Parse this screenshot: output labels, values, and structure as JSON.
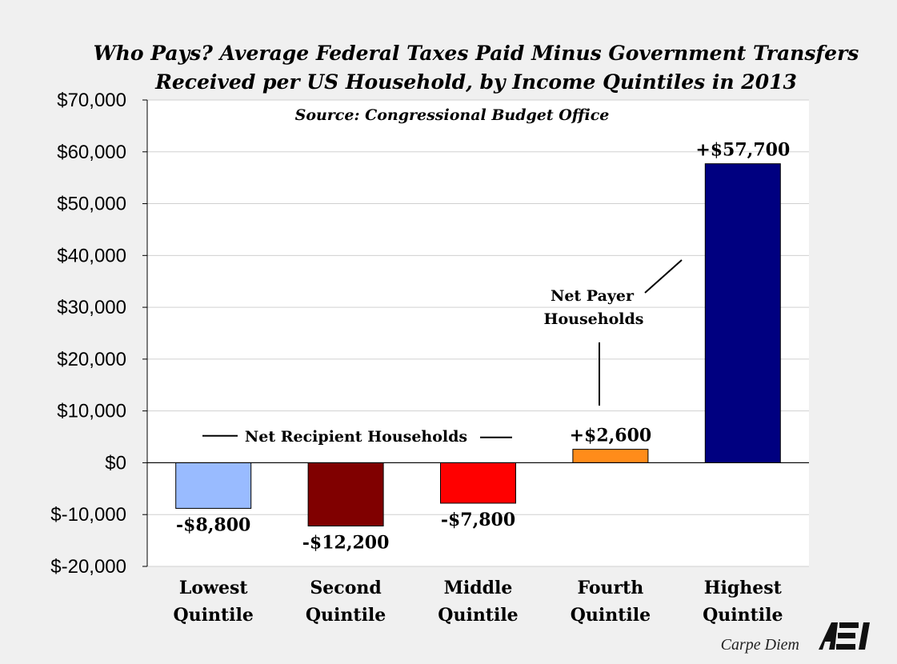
{
  "chart_data": {
    "type": "bar",
    "title": "Who Pays? Average Federal Taxes Paid Minus Government Transfers",
    "subtitle": "Received per US Household, by Income Quintiles in 2013",
    "source": "Source: Congressional Budget Office",
    "categories": [
      [
        "Lowest",
        "Quintile"
      ],
      [
        "Second",
        "Quintile"
      ],
      [
        "Middle",
        "Quintile"
      ],
      [
        "Fourth",
        "Quintile"
      ],
      [
        "Highest",
        "Quintile"
      ]
    ],
    "values": [
      -8800,
      -12200,
      -7800,
      2600,
      57700
    ],
    "data_labels": [
      "-$8,800",
      "-$12,200",
      "-$7,800",
      "+$2,600",
      "+$57,700"
    ],
    "colors": [
      "#99bbff",
      "#800000",
      "#ff0000",
      "#ff8c1a",
      "#000080"
    ],
    "ylim": [
      -20000,
      70000
    ],
    "yticks": [
      70000,
      60000,
      50000,
      40000,
      30000,
      20000,
      10000,
      0,
      -10000,
      -20000
    ],
    "ytick_labels": [
      "$70,000",
      "$60,000",
      "$50,000",
      "$40,000",
      "$30,000",
      "$20,000",
      "$10,000",
      "$0",
      "$-10,000",
      "$-20,000"
    ],
    "xlabel": "",
    "ylabel": "",
    "grid": true,
    "annotations": {
      "net_recipient": "Net Recipient Households",
      "net_payer_line1": "Net Payer",
      "net_payer_line2": "Households"
    }
  },
  "footer": {
    "credit": "Carpe Diem",
    "logo": "AEI"
  }
}
